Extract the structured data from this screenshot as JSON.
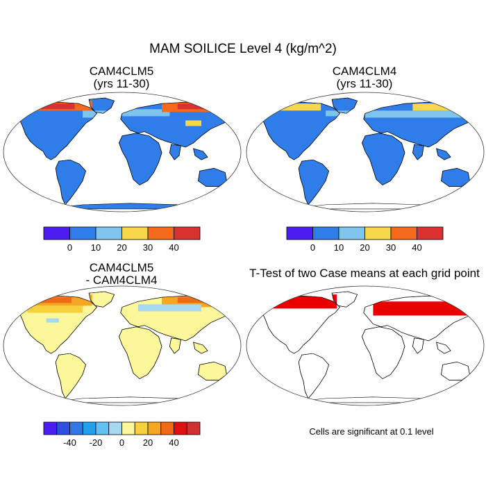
{
  "figure": {
    "title": "MAM SOILICE Level 4 (kg/m^2)"
  },
  "panels": [
    {
      "title_line1": "CAM4CLM5",
      "title_line2": "(yrs 11-30)"
    },
    {
      "title_line1": "CAM4CLM4",
      "title_line2": "(yrs 11-30)"
    },
    {
      "title_line1": "CAM4CLM5",
      "title_line2": "- CAM4CLM4"
    },
    {
      "title_line1": "T-Test of two Case means at each grid point",
      "title_line2": ""
    }
  ],
  "colorbars": {
    "absolute": {
      "colors": [
        "#4b1df0",
        "#2e7de8",
        "#7fc4ec",
        "#f8d84a",
        "#f56a1a",
        "#d93030"
      ],
      "labels": [
        "0",
        "10",
        "20",
        "30",
        "40"
      ]
    },
    "difference": {
      "colors": [
        "#4b1df0",
        "#2e50e0",
        "#2f78e6",
        "#23a0ec",
        "#62c1f2",
        "#a6d8f2",
        "#fbf79a",
        "#f8cf3c",
        "#f5a623",
        "#f06a16",
        "#e01010",
        "#d03030"
      ],
      "labels": [
        "-40",
        "-20",
        "0",
        "20",
        "40"
      ]
    }
  },
  "significance_note": "Cells are significant at 0.1 level",
  "map_fill_colors": {
    "ocean": "#ffffff",
    "land_low": "#2e7de8",
    "land_diff_neutral": "#fbf79a",
    "significant": "#e80000"
  }
}
